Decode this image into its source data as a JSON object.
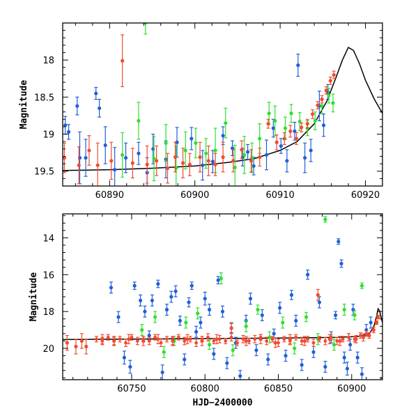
{
  "chart_data": [
    {
      "type": "scatter",
      "title": "",
      "xlabel": "",
      "ylabel": "Magnitude",
      "xlim": [
        60884.5,
        60922
      ],
      "ylim": [
        19.7,
        17.5
      ],
      "y_inverted": true,
      "grid": false,
      "x_ticks": [
        60890,
        60900,
        60910,
        60920
      ],
      "y_ticks": [
        18,
        18.5,
        19,
        19.5
      ],
      "x_tick_labels": [
        "60890",
        "60900",
        "60910",
        "60920"
      ],
      "y_tick_labels": [
        "18",
        "18.5",
        "19",
        "19.5"
      ],
      "model_curve": {
        "color": "#000000",
        "x": [
          60884.5,
          60890,
          60895,
          60900,
          60904,
          60907,
          60910,
          60912,
          60914,
          60915.5,
          60916.5,
          60917.3,
          60918,
          60918.6,
          60919.3,
          60920,
          60921,
          60922
        ],
        "y": [
          19.49,
          19.48,
          19.46,
          19.43,
          19.38,
          19.33,
          19.22,
          19.1,
          18.86,
          18.55,
          18.25,
          18.0,
          17.83,
          17.87,
          18.05,
          18.27,
          18.52,
          18.72
        ]
      },
      "series": [
        {
          "color": "#1f5fd8",
          "x": [
            60884.8,
            60885.2,
            60886.2,
            60886.5,
            60887.2,
            60888.4,
            60888.8,
            60889.5,
            60890.6,
            60891.9,
            60893.4,
            60894.4,
            60895.1,
            60896.6,
            60897.9,
            60899.6,
            60900.9,
            60902.1,
            60903.3,
            60904.4,
            60905.6,
            60906.2,
            60906.9,
            60908.4,
            60909.2,
            60910.1,
            60910.8,
            60911.7,
            60912.1,
            60912.9,
            60913.6,
            60914.6,
            60915.1,
            60915.6
          ],
          "y": [
            18.88,
            18.97,
            18.62,
            19.32,
            19.32,
            18.45,
            18.65,
            19.15,
            19.48,
            19.32,
            19.26,
            19.52,
            19.2,
            19.34,
            19.11,
            19.06,
            19.42,
            19.37,
            19.02,
            19.19,
            19.31,
            19.24,
            19.43,
            19.28,
            18.92,
            19.16,
            19.36,
            18.96,
            18.07,
            19.32,
            19.22,
            18.62,
            18.88,
            18.43
          ],
          "err": [
            0.12,
            0.1,
            0.12,
            0.35,
            0.25,
            0.08,
            0.12,
            0.25,
            0.3,
            0.2,
            0.15,
            0.2,
            0.2,
            0.25,
            0.2,
            0.15,
            0.2,
            0.15,
            0.12,
            0.1,
            0.12,
            0.1,
            0.12,
            0.2,
            0.12,
            0.1,
            0.15,
            0.12,
            0.15,
            0.2,
            0.15,
            0.2,
            0.15,
            0.1
          ]
        },
        {
          "color": "#2ee02e",
          "x": [
            60891.5,
            60893.4,
            60894.2,
            60895.2,
            60896.6,
            60897.8,
            60898.9,
            60900.1,
            60901.3,
            60902.4,
            60903.6,
            60904.7,
            60905.8,
            60906.7,
            60907.6,
            60908.7,
            60909.4,
            60910.6,
            60911.3,
            60912.3,
            60913.2,
            60914.1,
            60914.9,
            60915.7,
            60916.2
          ],
          "y": [
            19.28,
            18.82,
            17.5,
            19.33,
            19.12,
            19.46,
            19.22,
            19.12,
            19.26,
            19.22,
            18.85,
            19.45,
            19.28,
            19.32,
            19.06,
            18.72,
            18.82,
            18.92,
            18.72,
            18.83,
            18.92,
            18.82,
            18.62,
            18.48,
            18.58
          ],
          "err": [
            0.3,
            0.25,
            0.15,
            0.3,
            0.25,
            0.3,
            0.25,
            0.2,
            0.2,
            0.3,
            0.2,
            0.3,
            0.25,
            0.2,
            0.2,
            0.15,
            0.2,
            0.15,
            0.12,
            0.12,
            0.1,
            0.12,
            0.1,
            0.1,
            0.12
          ]
        },
        {
          "color": "#f24a2e",
          "x": [
            60884.7,
            60886.4,
            60887.6,
            60888.6,
            60890.2,
            60891.5,
            60892.7,
            60894.4,
            60895.5,
            60896.8,
            60897.7,
            60898.6,
            60899.4,
            60900.6,
            60901.6,
            60902.4,
            60903.3,
            60904.5,
            60905.5,
            60906.6,
            60907.6,
            60908.6,
            60909.6,
            60910.5,
            60911.2,
            60911.9,
            60912.5,
            60913.2,
            60913.8,
            60914.4,
            60914.9,
            60915.4,
            60915.9,
            60916.3
          ],
          "y": [
            19.32,
            19.42,
            19.22,
            19.42,
            19.36,
            18.01,
            19.39,
            19.41,
            19.36,
            19.46,
            19.31,
            19.39,
            19.41,
            19.31,
            19.36,
            19.41,
            19.31,
            19.36,
            19.21,
            19.36,
            19.31,
            18.86,
            19.11,
            19.06,
            18.96,
            19.06,
            18.91,
            18.86,
            18.73,
            18.61,
            18.53,
            18.41,
            18.28,
            18.2
          ],
          "err": [
            0.2,
            0.25,
            0.2,
            0.3,
            0.25,
            0.35,
            0.2,
            0.25,
            0.2,
            0.2,
            0.2,
            0.2,
            0.15,
            0.2,
            0.2,
            0.15,
            0.2,
            0.15,
            0.12,
            0.15,
            0.12,
            0.06,
            0.1,
            0.08,
            0.08,
            0.08,
            0.06,
            0.06,
            0.06,
            0.05,
            0.05,
            0.05,
            0.05,
            0.05
          ]
        }
      ]
    },
    {
      "type": "scatter",
      "title": "",
      "xlabel": "HJD−2400000",
      "ylabel": "Magnitude",
      "xlim": [
        60703,
        60921
      ],
      "ylim": [
        21.7,
        12.7
      ],
      "y_inverted": true,
      "grid": false,
      "x_ticks": [
        60750,
        60800,
        60850,
        60900
      ],
      "y_ticks": [
        14,
        16,
        18,
        20
      ],
      "x_tick_labels": [
        "60750",
        "60800",
        "60850",
        "60900"
      ],
      "y_tick_labels": [
        "14",
        "16",
        "18",
        "20"
      ],
      "model_curve": {
        "color": "#000000",
        "x": [
          60703,
          60750,
          60800,
          60850,
          60890,
          60905,
          60912,
          60915,
          60917,
          60918,
          60919,
          60920,
          60921
        ],
        "y": [
          19.52,
          19.5,
          19.47,
          19.44,
          19.4,
          19.35,
          19.2,
          18.85,
          18.25,
          17.85,
          17.95,
          18.3,
          18.6
        ]
      },
      "series": [
        {
          "color": "#1f5fd8",
          "x": [
            60736,
            60741,
            60745,
            60749,
            60752,
            60756,
            60759,
            60762,
            60764,
            60768,
            60771,
            60774,
            60777,
            60780,
            60783,
            60786,
            60789,
            60791,
            60794,
            60797,
            60800,
            60803,
            60806,
            60809,
            60812,
            60815,
            60818,
            60821,
            60824,
            60828,
            60831,
            60835,
            60839,
            60843,
            60847,
            60851,
            60855,
            60859,
            60862,
            60866,
            60870,
            60874,
            60878,
            60882,
            60886,
            60889,
            60891,
            60893,
            60895,
            60897,
            60899,
            60901,
            60904,
            60907,
            60910,
            60913
          ],
          "y": [
            16.7,
            18.3,
            20.5,
            21.0,
            16.6,
            17.4,
            18.0,
            19.3,
            17.4,
            16.5,
            21.3,
            17.9,
            17.2,
            16.9,
            18.5,
            20.6,
            17.5,
            16.6,
            19.1,
            18.6,
            17.3,
            17.9,
            20.3,
            16.3,
            18.0,
            20.8,
            18.9,
            19.7,
            21.5,
            18.5,
            17.3,
            20.1,
            18.2,
            20.6,
            19.2,
            17.8,
            20.4,
            17.1,
            18.5,
            20.9,
            16.0,
            20.2,
            17.5,
            21.0,
            19.4,
            18.2,
            14.2,
            15.4,
            20.5,
            21.1,
            19.8,
            17.9,
            20.5,
            21.4,
            19.0,
            18.6
          ],
          "err": [
            0.3,
            0.3,
            0.35,
            0.35,
            0.2,
            0.3,
            0.3,
            0.25,
            0.3,
            0.2,
            0.4,
            0.3,
            0.3,
            0.3,
            0.25,
            0.3,
            0.25,
            0.2,
            0.3,
            0.3,
            0.35,
            0.3,
            0.3,
            0.2,
            0.3,
            0.3,
            0.25,
            0.3,
            0.3,
            0.3,
            0.3,
            0.3,
            0.3,
            0.3,
            0.25,
            0.3,
            0.3,
            0.25,
            0.3,
            0.3,
            0.25,
            0.3,
            0.3,
            0.3,
            0.3,
            0.2,
            0.15,
            0.2,
            0.3,
            0.35,
            0.3,
            0.3,
            0.3,
            0.35,
            0.3,
            0.3
          ]
        },
        {
          "color": "#2ee02e",
          "x": [
            60757,
            60766,
            60772,
            60779,
            60787,
            60795,
            60803,
            60811,
            60819,
            60828,
            60836,
            60844,
            60853,
            60861,
            60869,
            60877,
            60882,
            60888,
            60895,
            60902,
            60907
          ],
          "y": [
            19.0,
            18.3,
            20.2,
            19.6,
            18.6,
            18.1,
            19.8,
            16.2,
            20.1,
            18.8,
            17.9,
            19.4,
            18.6,
            20.0,
            18.3,
            19.5,
            13.0,
            19.8,
            17.9,
            18.2,
            16.6
          ],
          "err": [
            0.3,
            0.3,
            0.3,
            0.25,
            0.3,
            0.3,
            0.25,
            0.3,
            0.3,
            0.3,
            0.25,
            0.3,
            0.3,
            0.3,
            0.25,
            0.3,
            0.15,
            0.3,
            0.3,
            0.25,
            0.15
          ]
        },
        {
          "color": "#f24a2e",
          "x": [
            60706,
            60712,
            60716,
            60719,
            60730,
            60738,
            60748,
            60758,
            60768,
            60778,
            60788,
            60798,
            60808,
            60818,
            60828,
            60838,
            60848,
            60858,
            60868,
            60877,
            60885,
            60892,
            60898,
            60903,
            60908,
            60912,
            60915,
            60917,
            60918
          ],
          "y": [
            19.7,
            19.9,
            19.6,
            19.9,
            19.5,
            19.6,
            19.5,
            19.6,
            19.5,
            19.6,
            19.5,
            19.6,
            19.5,
            18.9,
            19.6,
            19.5,
            19.7,
            19.5,
            19.6,
            17.1,
            19.5,
            19.6,
            19.4,
            19.5,
            19.4,
            19.3,
            19.0,
            18.6,
            18.3
          ],
          "err": [
            0.4,
            0.4,
            0.4,
            0.4,
            0.25,
            0.25,
            0.25,
            0.25,
            0.25,
            0.25,
            0.25,
            0.25,
            0.25,
            0.3,
            0.25,
            0.25,
            0.25,
            0.25,
            0.25,
            0.3,
            0.25,
            0.25,
            0.2,
            0.2,
            0.2,
            0.15,
            0.15,
            0.1,
            0.1
          ]
        },
        {
          "color": "#f24a2e",
          "band": true,
          "x": [
            60726,
            60730,
            60734,
            60738,
            60742,
            60746,
            60750,
            60754,
            60758,
            60762,
            60766,
            60770,
            60774,
            60778,
            60782,
            60786,
            60790,
            60794,
            60798,
            60802,
            60806,
            60810,
            60814,
            60818,
            60822,
            60826,
            60830,
            60834,
            60838,
            60842,
            60846,
            60850,
            60854,
            60858,
            60862,
            60866,
            60870,
            60874,
            60878,
            60882,
            60886,
            60890,
            60894,
            60898,
            60902,
            60906,
            60910
          ],
          "y": [
            19.5,
            19.6,
            19.4,
            19.6,
            19.5,
            19.7,
            19.4,
            19.6,
            19.5,
            19.6,
            19.4,
            19.7,
            19.5,
            19.6,
            19.4,
            19.6,
            19.5,
            19.7,
            19.5,
            19.4,
            19.6,
            19.5,
            19.6,
            19.4,
            19.7,
            19.5,
            19.6,
            19.5,
            19.4,
            19.6,
            19.5,
            19.7,
            19.5,
            19.6,
            19.4,
            19.6,
            19.5,
            19.7,
            19.5,
            19.6,
            19.4,
            19.6,
            19.5,
            19.4,
            19.5,
            19.3,
            19.2
          ],
          "err": [
            0.15,
            0.2,
            0.15,
            0.2,
            0.15,
            0.2,
            0.15,
            0.2,
            0.15,
            0.2,
            0.15,
            0.2,
            0.15,
            0.2,
            0.15,
            0.2,
            0.15,
            0.2,
            0.15,
            0.2,
            0.15,
            0.2,
            0.15,
            0.2,
            0.15,
            0.2,
            0.15,
            0.2,
            0.15,
            0.2,
            0.15,
            0.2,
            0.15,
            0.2,
            0.15,
            0.2,
            0.15,
            0.2,
            0.15,
            0.2,
            0.15,
            0.2,
            0.15,
            0.2,
            0.15,
            0.15,
            0.15
          ]
        }
      ]
    }
  ]
}
